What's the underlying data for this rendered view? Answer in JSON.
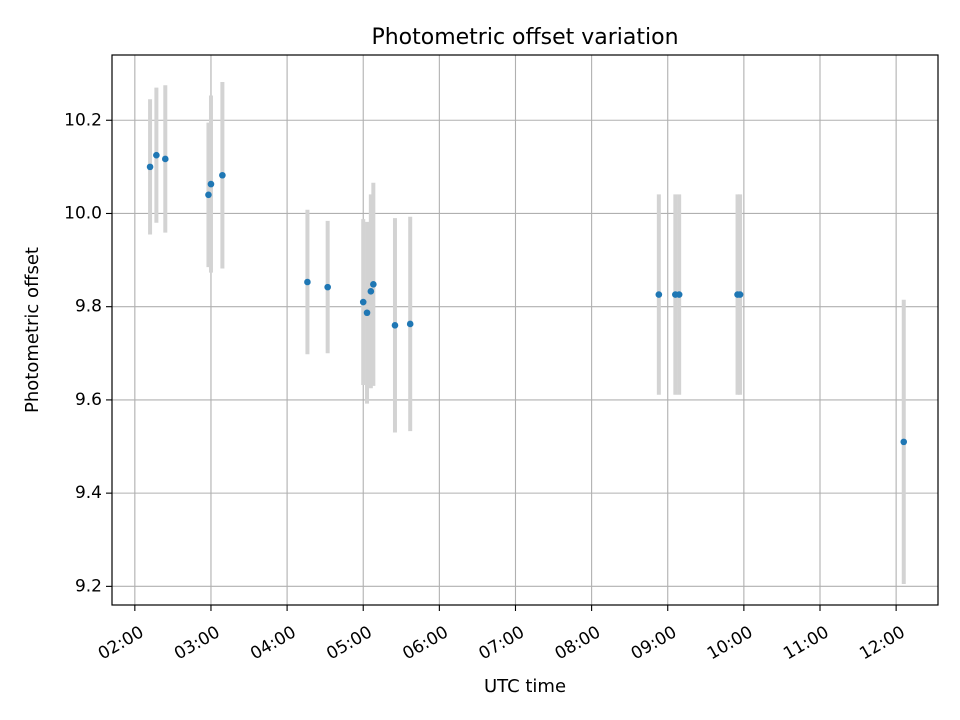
{
  "chart_data": {
    "type": "scatter",
    "title": "Photometric offset variation",
    "xlabel": "UTC time",
    "ylabel": "Photometric offset",
    "x_unit": "hours UTC",
    "xlim": [
      1.7,
      12.55
    ],
    "ylim": [
      9.16,
      10.34
    ],
    "x_ticks": [
      {
        "value": 2,
        "label": "02:00"
      },
      {
        "value": 3,
        "label": "03:00"
      },
      {
        "value": 4,
        "label": "04:00"
      },
      {
        "value": 5,
        "label": "05:00"
      },
      {
        "value": 6,
        "label": "06:00"
      },
      {
        "value": 7,
        "label": "07:00"
      },
      {
        "value": 8,
        "label": "08:00"
      },
      {
        "value": 9,
        "label": "09:00"
      },
      {
        "value": 10,
        "label": "10:00"
      },
      {
        "value": 11,
        "label": "11:00"
      },
      {
        "value": 12,
        "label": "12:00"
      }
    ],
    "y_ticks": [
      {
        "value": 9.2,
        "label": "9.2"
      },
      {
        "value": 9.4,
        "label": "9.4"
      },
      {
        "value": 9.6,
        "label": "9.6"
      },
      {
        "value": 9.8,
        "label": "9.8"
      },
      {
        "value": 10.0,
        "label": "10.0"
      },
      {
        "value": 10.2,
        "label": "10.2"
      }
    ],
    "grid": true,
    "legend": "none",
    "colors": {
      "point": "#1f77b4",
      "errorbar": "#d3d3d3",
      "grid": "#b0b0b0",
      "axes": "#000000"
    },
    "series": [
      {
        "points": [
          {
            "x": 2.2,
            "y": 10.1,
            "err": 0.145
          },
          {
            "x": 2.283,
            "y": 10.125,
            "err": 0.145
          },
          {
            "x": 2.4,
            "y": 10.117,
            "err": 0.158
          },
          {
            "x": 2.967,
            "y": 10.04,
            "err": 0.155
          },
          {
            "x": 3.0,
            "y": 10.063,
            "err": 0.19
          },
          {
            "x": 3.15,
            "y": 10.082,
            "err": 0.2
          },
          {
            "x": 4.267,
            "y": 9.853,
            "err": 0.155
          },
          {
            "x": 4.533,
            "y": 9.842,
            "err": 0.142
          },
          {
            "x": 5.0,
            "y": 9.81,
            "err": 0.178
          },
          {
            "x": 5.05,
            "y": 9.787,
            "err": 0.195
          },
          {
            "x": 5.1,
            "y": 9.833,
            "err": 0.208
          },
          {
            "x": 5.133,
            "y": 9.848,
            "err": 0.218
          },
          {
            "x": 5.417,
            "y": 9.76,
            "err": 0.23
          },
          {
            "x": 5.617,
            "y": 9.763,
            "err": 0.23
          },
          {
            "x": 8.883,
            "y": 9.826,
            "err": 0.215
          },
          {
            "x": 9.1,
            "y": 9.826,
            "err": 0.215
          },
          {
            "x": 9.15,
            "y": 9.826,
            "err": 0.215
          },
          {
            "x": 9.917,
            "y": 9.826,
            "err": 0.215
          },
          {
            "x": 9.95,
            "y": 9.826,
            "err": 0.215
          },
          {
            "x": 12.1,
            "y": 9.51,
            "err": 0.305
          }
        ]
      }
    ]
  }
}
